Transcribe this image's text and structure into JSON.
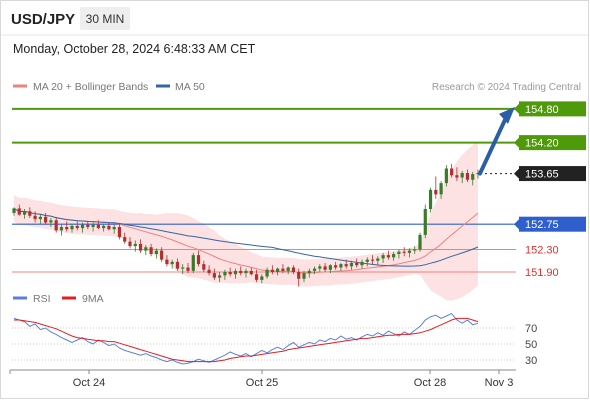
{
  "header": {
    "symbol": "USD/JPY",
    "timeframe": "30 MIN"
  },
  "datetime": "Monday, October 28, 2024 6:48:33 AM CET",
  "legend": {
    "ma20": "MA 20 + Bollinger Bands",
    "ma50": "MA 50",
    "rsi": "RSI",
    "ma9": "9MA"
  },
  "attribution": "Research © 2024 Trading Central",
  "colors": {
    "green": "#4f9a0a",
    "blue": "#2e5fcc",
    "red": "#e05050",
    "dark": "#222222",
    "arrow": "#2a5ea8",
    "ma20": "#f08080",
    "ma50": "#3465a4",
    "band": "#fbd8d8",
    "rsi": "#5b7fd9",
    "rsi_ma": "#e02020",
    "bull": "#3a7a28",
    "bear": "#b03030"
  },
  "chart_data": [
    {
      "type": "candlestick",
      "x_ticks": [
        "Oct 24",
        "Oct 25",
        "Oct 28",
        "Nov 3"
      ],
      "ylim": [
        151.58,
        155.1
      ],
      "levels": [
        {
          "label": "154.80",
          "value": 154.8,
          "style": "resistance"
        },
        {
          "label": "154.20",
          "value": 154.2,
          "style": "resistance"
        },
        {
          "label": "153.65",
          "value": 153.65,
          "style": "last"
        },
        {
          "label": "152.75",
          "value": 152.75,
          "style": "pivot"
        },
        {
          "label": "152.30",
          "value": 152.3,
          "style": "support"
        },
        {
          "label": "151.90",
          "value": 151.9,
          "style": "support"
        }
      ],
      "candles": [
        [
          152.95,
          153.05,
          152.9,
          153.03
        ],
        [
          153.03,
          153.1,
          152.9,
          152.92
        ],
        [
          152.92,
          153.02,
          152.85,
          152.98
        ],
        [
          152.98,
          153.05,
          152.86,
          152.9
        ],
        [
          152.9,
          152.98,
          152.78,
          152.84
        ],
        [
          152.84,
          152.92,
          152.76,
          152.88
        ],
        [
          152.88,
          152.95,
          152.74,
          152.78
        ],
        [
          152.78,
          152.86,
          152.7,
          152.82
        ],
        [
          152.82,
          152.88,
          152.6,
          152.64
        ],
        [
          152.64,
          152.74,
          152.55,
          152.7
        ],
        [
          152.7,
          152.8,
          152.62,
          152.66
        ],
        [
          152.66,
          152.76,
          152.6,
          152.72
        ],
        [
          152.72,
          152.8,
          152.64,
          152.68
        ],
        [
          152.68,
          152.78,
          152.6,
          152.74
        ],
        [
          152.74,
          152.8,
          152.66,
          152.7
        ],
        [
          152.7,
          152.78,
          152.62,
          152.74
        ],
        [
          152.74,
          152.82,
          152.66,
          152.68
        ],
        [
          152.68,
          152.76,
          152.62,
          152.72
        ],
        [
          152.72,
          152.78,
          152.64,
          152.66
        ],
        [
          152.66,
          152.74,
          152.58,
          152.7
        ],
        [
          152.7,
          152.76,
          152.48,
          152.52
        ],
        [
          152.52,
          152.6,
          152.4,
          152.44
        ],
        [
          152.44,
          152.52,
          152.32,
          152.36
        ],
        [
          152.36,
          152.46,
          152.26,
          152.4
        ],
        [
          152.4,
          152.48,
          152.24,
          152.28
        ],
        [
          152.28,
          152.38,
          152.2,
          152.34
        ],
        [
          152.34,
          152.4,
          152.18,
          152.22
        ],
        [
          152.22,
          152.32,
          152.14,
          152.28
        ],
        [
          152.28,
          152.34,
          152.08,
          152.12
        ],
        [
          152.12,
          152.2,
          152.0,
          152.04
        ],
        [
          152.04,
          152.12,
          151.96,
          152.08
        ],
        [
          152.08,
          152.14,
          151.92,
          151.96
        ],
        [
          151.96,
          152.04,
          151.86,
          151.98
        ],
        [
          151.98,
          152.06,
          151.88,
          151.92
        ],
        [
          151.92,
          152.24,
          151.88,
          152.2
        ],
        [
          152.2,
          152.28,
          152.0,
          152.04
        ],
        [
          152.04,
          152.1,
          151.9,
          151.94
        ],
        [
          151.94,
          152.02,
          151.84,
          151.88
        ],
        [
          151.88,
          151.96,
          151.76,
          151.8
        ],
        [
          151.8,
          151.9,
          151.72,
          151.84
        ],
        [
          151.84,
          151.94,
          151.76,
          151.9
        ],
        [
          151.9,
          151.98,
          151.82,
          151.86
        ],
        [
          151.86,
          151.96,
          151.78,
          151.92
        ],
        [
          151.92,
          152.0,
          151.84,
          151.88
        ],
        [
          151.88,
          151.96,
          151.8,
          151.92
        ],
        [
          151.92,
          151.98,
          151.84,
          151.86
        ],
        [
          151.86,
          151.94,
          151.72,
          151.76
        ],
        [
          151.76,
          151.86,
          151.7,
          151.82
        ],
        [
          151.82,
          151.98,
          151.78,
          151.94
        ],
        [
          151.94,
          152.02,
          151.86,
          151.9
        ],
        [
          151.9,
          151.98,
          151.84,
          151.96
        ],
        [
          151.96,
          152.04,
          151.88,
          151.92
        ],
        [
          151.92,
          152.0,
          151.86,
          151.98
        ],
        [
          151.98,
          152.02,
          151.86,
          151.9
        ],
        [
          151.9,
          151.96,
          151.64,
          151.78
        ],
        [
          151.78,
          151.92,
          151.72,
          151.88
        ],
        [
          151.88,
          151.96,
          151.8,
          151.92
        ],
        [
          151.92,
          152.0,
          151.86,
          151.96
        ],
        [
          151.96,
          152.04,
          151.9,
          152.0
        ],
        [
          152.0,
          152.06,
          151.9,
          151.94
        ],
        [
          151.94,
          152.04,
          151.88,
          152.02
        ],
        [
          152.02,
          152.08,
          151.94,
          151.98
        ],
        [
          151.98,
          152.06,
          151.92,
          152.04
        ],
        [
          152.04,
          152.12,
          151.96,
          152.0
        ],
        [
          152.0,
          152.1,
          151.94,
          152.06
        ],
        [
          152.06,
          152.14,
          151.98,
          152.02
        ],
        [
          152.02,
          152.12,
          151.96,
          152.08
        ],
        [
          152.08,
          152.16,
          152.0,
          152.12
        ],
        [
          152.12,
          152.2,
          152.04,
          152.1
        ],
        [
          152.1,
          152.18,
          152.02,
          152.14
        ],
        [
          152.14,
          152.24,
          152.06,
          152.2
        ],
        [
          152.2,
          152.28,
          152.12,
          152.16
        ],
        [
          152.16,
          152.26,
          152.1,
          152.22
        ],
        [
          152.22,
          152.3,
          152.14,
          152.26
        ],
        [
          152.26,
          152.34,
          152.18,
          152.24
        ],
        [
          152.24,
          152.32,
          152.16,
          152.28
        ],
        [
          152.28,
          152.36,
          152.22,
          152.3
        ],
        [
          152.3,
          152.6,
          152.26,
          152.56
        ],
        [
          152.56,
          153.1,
          152.5,
          153.02
        ],
        [
          153.02,
          153.4,
          152.96,
          153.36
        ],
        [
          153.36,
          153.6,
          153.2,
          153.28
        ],
        [
          153.28,
          153.52,
          153.2,
          153.48
        ],
        [
          153.48,
          153.8,
          153.42,
          153.74
        ],
        [
          153.74,
          153.82,
          153.58,
          153.62
        ],
        [
          153.62,
          153.76,
          153.52,
          153.58
        ],
        [
          153.58,
          153.7,
          153.48,
          153.66
        ],
        [
          153.66,
          153.72,
          153.5,
          153.54
        ],
        [
          153.54,
          153.68,
          153.44,
          153.64
        ],
        [
          153.64,
          153.72,
          153.56,
          153.66
        ]
      ],
      "forecast_arrow": {
        "from": 153.65,
        "to": 154.8
      }
    },
    {
      "type": "line",
      "ylabel": "RSI",
      "y_ticks": [
        70,
        50,
        30
      ],
      "ylim": [
        20,
        90
      ],
      "series": [
        {
          "name": "RSI",
          "values": [
            82,
            80,
            78,
            72,
            75,
            68,
            70,
            65,
            62,
            58,
            55,
            52,
            55,
            58,
            53,
            50,
            55,
            52,
            48,
            50,
            45,
            42,
            40,
            38,
            36,
            38,
            35,
            33,
            30,
            28,
            30,
            27,
            25,
            26,
            28,
            31,
            29,
            27,
            30,
            33,
            36,
            40,
            37,
            35,
            38,
            34,
            38,
            42,
            39,
            43,
            46,
            43,
            48,
            52,
            46,
            49,
            52,
            50,
            55,
            53,
            57,
            55,
            60,
            56,
            58,
            55,
            59,
            62,
            60,
            64,
            61,
            66,
            63,
            60,
            65,
            62,
            67,
            72,
            80,
            84,
            86,
            82,
            85,
            88,
            80,
            76,
            80,
            74,
            76
          ]
        },
        {
          "name": "9MA",
          "values": [
            80,
            80,
            79,
            78,
            77,
            75,
            73,
            71,
            69,
            66,
            63,
            60,
            58,
            57,
            56,
            55,
            54,
            54,
            53,
            53,
            51,
            49,
            47,
            45,
            43,
            41,
            39,
            37,
            35,
            33,
            31,
            30,
            29,
            28,
            28,
            28,
            28,
            28,
            28,
            29,
            30,
            32,
            33,
            34,
            35,
            35,
            36,
            37,
            38,
            39,
            40,
            41,
            43,
            44,
            45,
            46,
            47,
            48,
            49,
            50,
            51,
            52,
            53,
            54,
            55,
            56,
            57,
            57,
            58,
            59,
            60,
            61,
            61,
            62,
            62,
            62,
            63,
            64,
            66,
            68,
            71,
            74,
            77,
            80,
            82,
            82,
            82,
            80,
            78
          ]
        }
      ]
    }
  ]
}
